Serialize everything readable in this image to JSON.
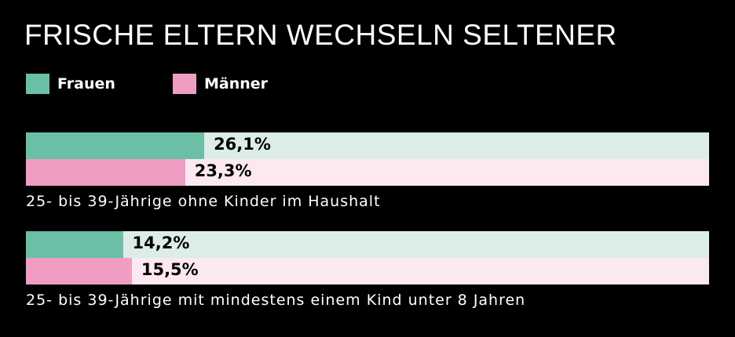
{
  "chart_data": {
    "type": "bar",
    "orientation": "horizontal",
    "title": "FRISCHE ELTERN WECHSELN SELTENER",
    "legend_position": "top-left",
    "categories": [
      "25- bis 39-Jährige ohne Kinder im Haushalt",
      "25- bis 39-Jährige mit mindestens einem Kind unter 8 Jahren"
    ],
    "series": [
      {
        "name": "Frauen",
        "values": [
          26.1,
          14.2
        ],
        "labels": [
          "26,1%",
          "14,2%"
        ],
        "color": "#6bbfa6",
        "track_color": "#dbede5"
      },
      {
        "name": "Männer",
        "values": [
          23.3,
          15.5
        ],
        "labels": [
          "23,3%",
          "15,5%"
        ],
        "color": "#f09dc3",
        "track_color": "#fce8f1"
      }
    ],
    "xlim": [
      0,
      100
    ],
    "grid": false
  }
}
